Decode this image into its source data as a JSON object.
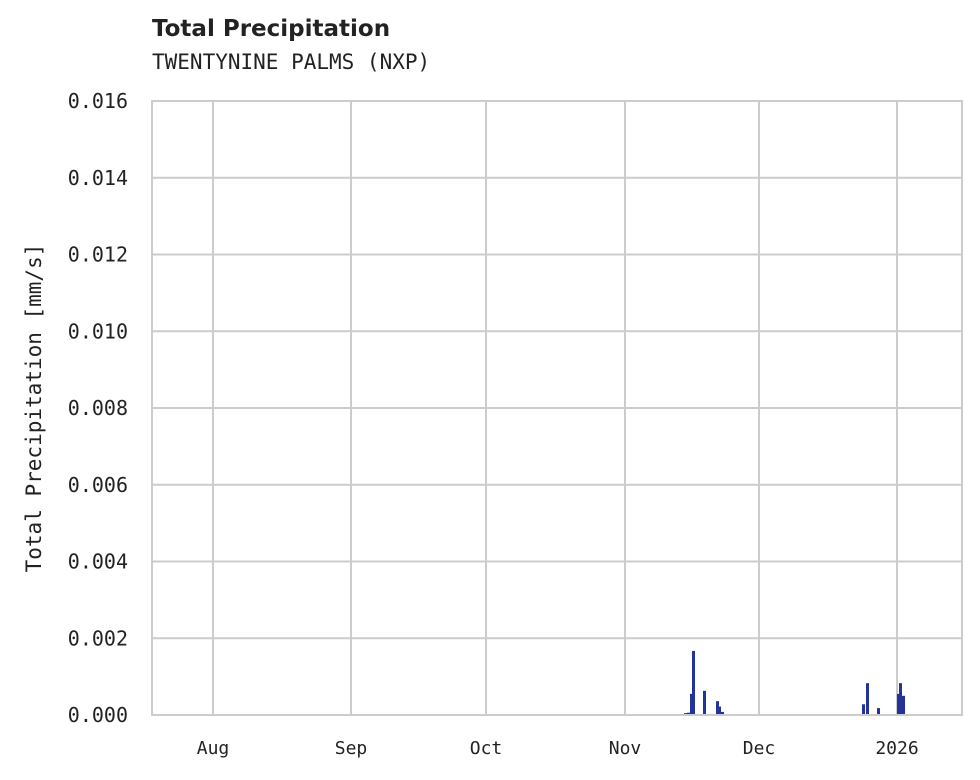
{
  "header": {
    "title": "Total Precipitation",
    "subtitle": "TWENTYNINE PALMS (NXP)"
  },
  "colors": {
    "bar": "#24339a",
    "grid": "#cccccc",
    "text": "#222222"
  },
  "chart_data": {
    "type": "bar",
    "title": "Total Precipitation",
    "subtitle": "TWENTYNINE PALMS (NXP)",
    "xlabel": "",
    "ylabel": "Total Precipitation [mm/s]",
    "ylim": [
      0,
      0.016
    ],
    "yticks": [
      "0.000",
      "0.002",
      "0.004",
      "0.006",
      "0.008",
      "0.010",
      "0.012",
      "0.014",
      "0.016"
    ],
    "xticks": [
      "Aug",
      "Sep",
      "Oct",
      "Nov",
      "Dec",
      "2026"
    ],
    "grid": true,
    "legend": null,
    "series": [
      {
        "name": "Total Precipitation",
        "points": [
          {
            "date": "2025-11-14",
            "value": 5e-05
          },
          {
            "date": "2025-11-15",
            "value": 6e-05
          },
          {
            "date": "2025-11-16",
            "value": 0.00055
          },
          {
            "date": "2025-11-16b",
            "value": 0.00167
          },
          {
            "date": "2025-11-19",
            "value": 0.00063
          },
          {
            "date": "2025-11-22",
            "value": 0.00036
          },
          {
            "date": "2025-11-22b",
            "value": 0.00022
          },
          {
            "date": "2025-11-23",
            "value": 8e-05
          },
          {
            "date": "2025-12-25",
            "value": 0.00028
          },
          {
            "date": "2025-12-26",
            "value": 0.00083
          },
          {
            "date": "2025-12-29",
            "value": 0.00018
          },
          {
            "date": "2026-01-01",
            "value": 0.00083
          },
          {
            "date": "2026-01-01b",
            "value": 0.00055
          },
          {
            "date": "2026-01-02",
            "value": 0.0005
          }
        ]
      }
    ]
  }
}
